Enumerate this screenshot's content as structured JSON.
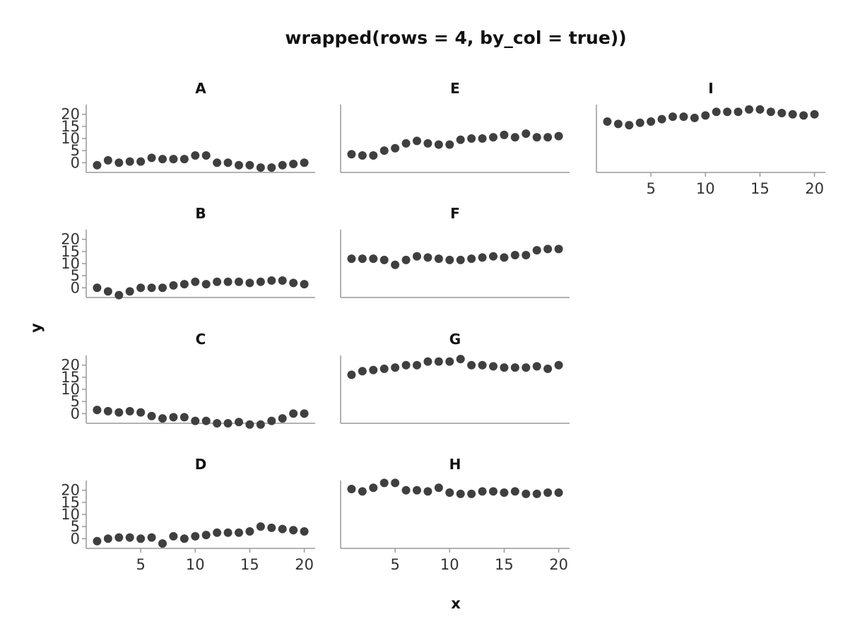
{
  "chart_data": {
    "type": "scatter",
    "title": "wrapped(rows = 4, by_col = true))",
    "xlabel": "x",
    "ylabel": "y",
    "xlim": [
      0,
      21
    ],
    "ylim": [
      -4,
      24
    ],
    "x_ticks": [
      5,
      10,
      15,
      20
    ],
    "y_ticks": [
      0,
      5,
      10,
      15,
      20
    ],
    "grid": false,
    "layout": "wrapped, 4 rows, filled by column",
    "x": [
      1,
      2,
      3,
      4,
      5,
      6,
      7,
      8,
      9,
      10,
      11,
      12,
      13,
      14,
      15,
      16,
      17,
      18,
      19,
      20
    ],
    "series": [
      {
        "name": "A",
        "values": [
          -1,
          1,
          0,
          0.5,
          0.5,
          2,
          1.5,
          1.5,
          1.5,
          3,
          3,
          0,
          0,
          -1,
          -1,
          -2,
          -2,
          -1,
          -0.5,
          0
        ]
      },
      {
        "name": "B",
        "values": [
          0,
          -1.5,
          -3,
          -1.5,
          0,
          0,
          0,
          1,
          1.5,
          2.5,
          1.5,
          2.5,
          2.5,
          2.5,
          2,
          2.5,
          3,
          3,
          2,
          1.5
        ]
      },
      {
        "name": "C",
        "values": [
          1.5,
          1,
          0.5,
          1,
          0.5,
          -1,
          -2,
          -1.5,
          -1.5,
          -3,
          -3,
          -4,
          -4,
          -3.5,
          -4.5,
          -4.5,
          -3,
          -2,
          0,
          0
        ]
      },
      {
        "name": "D",
        "values": [
          -1,
          0,
          0.5,
          0.5,
          0,
          0.5,
          -2,
          1,
          0,
          1,
          1.5,
          2.5,
          2.5,
          2.5,
          3,
          5,
          4.5,
          4,
          3.5,
          3
        ]
      },
      {
        "name": "E",
        "values": [
          3.5,
          3,
          3,
          5,
          6,
          8,
          9,
          8,
          7.5,
          7.5,
          9.5,
          10,
          10,
          10.5,
          11.5,
          10.5,
          12,
          10.5,
          10.5,
          11
        ]
      },
      {
        "name": "F",
        "values": [
          12,
          12,
          12,
          11.5,
          9.5,
          11.5,
          13,
          12.5,
          12,
          11.5,
          11.5,
          12,
          12.5,
          13,
          12.5,
          13.5,
          13.5,
          15.5,
          16,
          16
        ]
      },
      {
        "name": "G",
        "values": [
          16,
          17.5,
          18,
          18.5,
          19,
          20,
          20,
          21.5,
          21.5,
          21.5,
          22.5,
          20,
          20,
          19.5,
          19,
          19,
          19,
          19.5,
          18.5,
          20
        ]
      },
      {
        "name": "H",
        "values": [
          20.5,
          19.5,
          21,
          23,
          23,
          20,
          20,
          19.5,
          21,
          19,
          18.5,
          18.5,
          19.5,
          19.5,
          19,
          19.5,
          18.5,
          18.5,
          19,
          19
        ]
      },
      {
        "name": "I",
        "values": [
          17,
          16,
          15.5,
          16.5,
          17,
          18,
          19,
          19,
          18.5,
          19.5,
          21,
          21,
          21,
          22,
          22,
          21,
          20.5,
          20,
          19.5,
          20
        ]
      }
    ]
  }
}
